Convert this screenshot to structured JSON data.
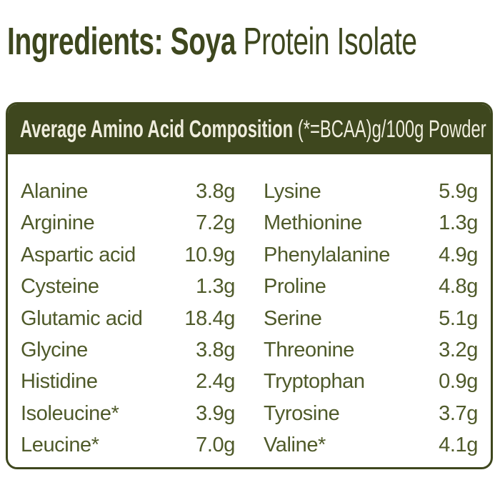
{
  "title": {
    "bold": "Ingredients: Soya",
    "regular": " Protein Isolate"
  },
  "panel_header": {
    "bold": "Average Amino Acid Composition",
    "regular": " (*=BCAA)g/100g Powder"
  },
  "amino_acids": {
    "left": [
      {
        "name": "Alanine",
        "value": "3.8g"
      },
      {
        "name": "Arginine",
        "value": "7.2g"
      },
      {
        "name": "Aspartic acid",
        "value": "10.9g"
      },
      {
        "name": "Cysteine",
        "value": "1.3g"
      },
      {
        "name": "Glutamic acid",
        "value": "18.4g"
      },
      {
        "name": "Glycine",
        "value": "3.8g"
      },
      {
        "name": "Histidine",
        "value": "2.4g"
      },
      {
        "name": "Isoleucine*",
        "value": "3.9g"
      },
      {
        "name": "Leucine*",
        "value": "7.0g"
      }
    ],
    "right": [
      {
        "name": "Lysine",
        "value": "5.9g"
      },
      {
        "name": "Methionine",
        "value": "1.3g"
      },
      {
        "name": "Phenylalanine",
        "value": "4.9g"
      },
      {
        "name": "Proline",
        "value": "4.8g"
      },
      {
        "name": "Serine",
        "value": "5.1g"
      },
      {
        "name": "Threonine",
        "value": "3.2g"
      },
      {
        "name": "Tryptophan",
        "value": "0.9g"
      },
      {
        "name": "Tyrosine",
        "value": "3.7g"
      },
      {
        "name": "Valine*",
        "value": "4.1g"
      }
    ]
  },
  "colors": {
    "dark_green": "#3e471e",
    "text_green": "#4f5a2a",
    "header_text": "#efeddd",
    "background": "#ffffff"
  }
}
